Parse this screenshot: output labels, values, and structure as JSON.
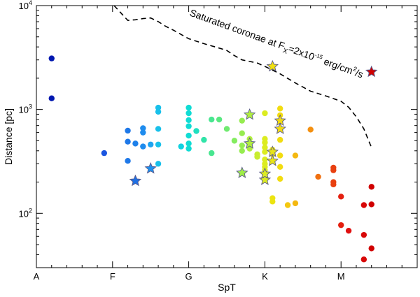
{
  "chart_data": {
    "type": "scatter",
    "title": "",
    "xlabel": "SpT",
    "ylabel": "Distance [pc]",
    "xscale": "spectral-type (A=0, F=10, G=20, K=30, M=40 subclasses)",
    "xlim": [
      0,
      50
    ],
    "ylim": [
      30,
      10000
    ],
    "yscale": "log",
    "x_ticks": [
      {
        "value": 0,
        "label": "A"
      },
      {
        "value": 10,
        "label": "F"
      },
      {
        "value": 20,
        "label": "G"
      },
      {
        "value": 30,
        "label": "K"
      },
      {
        "value": 40,
        "label": "M"
      }
    ],
    "y_ticks": [
      {
        "value": 100,
        "base": "10",
        "exp": "2"
      },
      {
        "value": 1000,
        "base": "10",
        "exp": "3"
      },
      {
        "value": 10000,
        "base": "10",
        "exp": "4"
      }
    ],
    "annotation": {
      "text_before": "Saturated coronae at F",
      "sub": "X",
      "text_mid": "=2x10",
      "sup1": "-15",
      "text_after": " erg/cm",
      "sup2": "2",
      "text_end": "/s"
    },
    "saturation_curve": {
      "style": "dashed",
      "x": [
        10.2,
        12.0,
        13.0,
        14.0,
        15.0,
        16.0,
        17.0,
        18.0,
        20.0,
        22.0,
        24.0,
        25.0,
        26.0,
        27.0,
        28.0,
        29.0,
        30.0,
        32.0,
        34.0,
        36.0,
        38.0,
        40.0,
        41.0,
        42.0,
        43.0,
        44.0
      ],
      "y": [
        11000,
        7200,
        7300,
        7500,
        7600,
        7000,
        6300,
        5800,
        4800,
        4300,
        3900,
        3700,
        3300,
        3000,
        2900,
        2800,
        2600,
        2200,
        1800,
        1500,
        1350,
        1200,
        1050,
        850,
        650,
        430
      ]
    },
    "series": [
      {
        "name": "stars",
        "marker": "circle",
        "points": [
          {
            "x": 2.0,
            "y": 3100,
            "color": "#0018b0"
          },
          {
            "x": 2.0,
            "y": 1280,
            "color": "#0018b0"
          },
          {
            "x": 8.9,
            "y": 380,
            "color": "#1a55e0"
          },
          {
            "x": 12.0,
            "y": 625,
            "color": "#1e78e8"
          },
          {
            "x": 12.0,
            "y": 490,
            "color": "#1e78e8"
          },
          {
            "x": 12.0,
            "y": 320,
            "color": "#1e78e8"
          },
          {
            "x": 13.0,
            "y": 470,
            "color": "#1e80ea"
          },
          {
            "x": 14.0,
            "y": 660,
            "color": "#1e8cee"
          },
          {
            "x": 14.0,
            "y": 600,
            "color": "#1e8cee"
          },
          {
            "x": 14.0,
            "y": 440,
            "color": "#1e8cee"
          },
          {
            "x": 15.0,
            "y": 460,
            "color": "#1ea4f0"
          },
          {
            "x": 16.0,
            "y": 1040,
            "color": "#18c0ea"
          },
          {
            "x": 16.0,
            "y": 950,
            "color": "#18c0ea"
          },
          {
            "x": 16.0,
            "y": 650,
            "color": "#18c0ea"
          },
          {
            "x": 16.0,
            "y": 460,
            "color": "#18c0ea"
          },
          {
            "x": 16.0,
            "y": 300,
            "color": "#18c0ea"
          },
          {
            "x": 19.0,
            "y": 440,
            "color": "#10d2e0"
          },
          {
            "x": 20.0,
            "y": 1040,
            "color": "#10dcd4"
          },
          {
            "x": 20.0,
            "y": 920,
            "color": "#10dcd4"
          },
          {
            "x": 20.0,
            "y": 790,
            "color": "#10dcd4"
          },
          {
            "x": 20.0,
            "y": 690,
            "color": "#10dcd4"
          },
          {
            "x": 20.0,
            "y": 560,
            "color": "#10dcd4"
          },
          {
            "x": 20.0,
            "y": 470,
            "color": "#10dcd4"
          },
          {
            "x": 20.0,
            "y": 420,
            "color": "#10dcd4"
          },
          {
            "x": 21.0,
            "y": 620,
            "color": "#20e0c0"
          },
          {
            "x": 22.0,
            "y": 510,
            "color": "#30e4a8"
          },
          {
            "x": 23.0,
            "y": 800,
            "color": "#48e690"
          },
          {
            "x": 23.0,
            "y": 380,
            "color": "#48e690"
          },
          {
            "x": 24.0,
            "y": 800,
            "color": "#58e880"
          },
          {
            "x": 25.0,
            "y": 650,
            "color": "#70ea70"
          },
          {
            "x": 26.0,
            "y": 500,
            "color": "#84ec60"
          },
          {
            "x": 27.0,
            "y": 780,
            "color": "#96ec50"
          },
          {
            "x": 27.0,
            "y": 590,
            "color": "#96ec50"
          },
          {
            "x": 27.0,
            "y": 450,
            "color": "#96ec50"
          },
          {
            "x": 27.0,
            "y": 400,
            "color": "#96ec50"
          },
          {
            "x": 28.0,
            "y": 520,
            "color": "#b0ee40"
          },
          {
            "x": 28.0,
            "y": 420,
            "color": "#b0ee40"
          },
          {
            "x": 29.0,
            "y": 370,
            "color": "#c8ec30"
          },
          {
            "x": 29.0,
            "y": 350,
            "color": "#c8ec30"
          },
          {
            "x": 30.0,
            "y": 920,
            "color": "#dcec20"
          },
          {
            "x": 30.0,
            "y": 520,
            "color": "#dcec20"
          },
          {
            "x": 30.0,
            "y": 480,
            "color": "#dcec20"
          },
          {
            "x": 30.0,
            "y": 430,
            "color": "#dcec20"
          },
          {
            "x": 30.0,
            "y": 390,
            "color": "#dcec20"
          },
          {
            "x": 30.0,
            "y": 330,
            "color": "#dcec20"
          },
          {
            "x": 30.0,
            "y": 300,
            "color": "#dcec20"
          },
          {
            "x": 30.0,
            "y": 280,
            "color": "#dcec20"
          },
          {
            "x": 30.0,
            "y": 260,
            "color": "#dcec20"
          },
          {
            "x": 31.0,
            "y": 410,
            "color": "#ece410"
          },
          {
            "x": 31.0,
            "y": 370,
            "color": "#ece410"
          },
          {
            "x": 31.0,
            "y": 140,
            "color": "#ece410"
          },
          {
            "x": 31.0,
            "y": 130,
            "color": "#ece410"
          },
          {
            "x": 32.0,
            "y": 1020,
            "color": "#f2dc10"
          },
          {
            "x": 32.0,
            "y": 880,
            "color": "#f2dc10"
          },
          {
            "x": 32.0,
            "y": 510,
            "color": "#f2dc10"
          },
          {
            "x": 32.0,
            "y": 360,
            "color": "#f2dc10"
          },
          {
            "x": 32.0,
            "y": 280,
            "color": "#f2dc10"
          },
          {
            "x": 32.0,
            "y": 215,
            "color": "#f2dc10"
          },
          {
            "x": 33.0,
            "y": 120,
            "color": "#f4c810"
          },
          {
            "x": 34.0,
            "y": 360,
            "color": "#f4b810"
          },
          {
            "x": 34.0,
            "y": 125,
            "color": "#f4b810"
          },
          {
            "x": 36.0,
            "y": 640,
            "color": "#f49010"
          },
          {
            "x": 37.0,
            "y": 225,
            "color": "#f07010"
          },
          {
            "x": 39.0,
            "y": 275,
            "color": "#e84010"
          },
          {
            "x": 39.0,
            "y": 260,
            "color": "#e84010"
          },
          {
            "x": 39.0,
            "y": 200,
            "color": "#e84010"
          },
          {
            "x": 39.0,
            "y": 190,
            "color": "#e84010"
          },
          {
            "x": 40.0,
            "y": 145,
            "color": "#e42010"
          },
          {
            "x": 40.0,
            "y": 77,
            "color": "#e42010"
          },
          {
            "x": 41.0,
            "y": 68,
            "color": "#e01010"
          },
          {
            "x": 43.0,
            "y": 120,
            "color": "#d80808"
          },
          {
            "x": 43.0,
            "y": 62,
            "color": "#d80808"
          },
          {
            "x": 43.0,
            "y": 36,
            "color": "#d80808"
          },
          {
            "x": 44.0,
            "y": 180,
            "color": "#d00000"
          },
          {
            "x": 44.0,
            "y": 122,
            "color": "#d00000"
          },
          {
            "x": 44.0,
            "y": 46,
            "color": "#d00000"
          }
        ]
      },
      {
        "name": "stars-highlighted",
        "marker": "star",
        "points": [
          {
            "x": 13.0,
            "y": 205,
            "color": "#1e70e4"
          },
          {
            "x": 15.0,
            "y": 270,
            "color": "#1e90ee"
          },
          {
            "x": 27.0,
            "y": 245,
            "color": "#a0ee48"
          },
          {
            "x": 28.0,
            "y": 890,
            "color": "#b0ee40"
          },
          {
            "x": 28.0,
            "y": 470,
            "color": "#b0ee40"
          },
          {
            "x": 30.0,
            "y": 210,
            "color": "#dcec20"
          },
          {
            "x": 30.0,
            "y": 240,
            "color": "#dcec20"
          },
          {
            "x": 31.0,
            "y": 2600,
            "color": "#f0e010"
          },
          {
            "x": 31.0,
            "y": 390,
            "color": "#e8e418"
          },
          {
            "x": 31.0,
            "y": 320,
            "color": "#e8e418"
          },
          {
            "x": 32.0,
            "y": 780,
            "color": "#f2dc10"
          },
          {
            "x": 32.0,
            "y": 650,
            "color": "#f2dc10"
          },
          {
            "x": 44.0,
            "y": 2300,
            "color": "#d00000"
          }
        ]
      }
    ]
  }
}
